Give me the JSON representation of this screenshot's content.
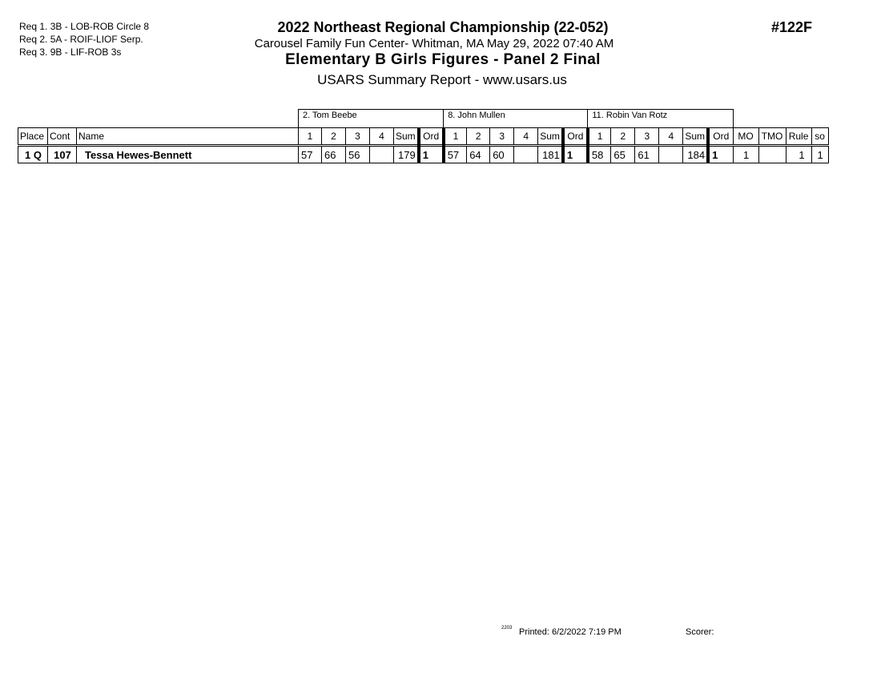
{
  "requirements": [
    "Req  1.  3B - LOB-ROB Circle 8",
    "Req  2.  5A - ROIF-LIOF Serp.",
    "Req  3.  9B - LIF-ROB 3s"
  ],
  "header": {
    "title": "2022 Northeast Regional Championship (22-052)",
    "location": "Carousel Family Fun Center- Whitman, MA  May 29, 2022  07:40 AM",
    "event": "Elementary B Girls Figures - Panel 2 Final",
    "report": "USARS Summary Report - www.usars.us",
    "event_number": "#122F"
  },
  "judges": [
    "2.  Tom Beebe",
    "8.  John Mullen",
    "11.  Robin Van Rotz"
  ],
  "columns": {
    "place": "Place",
    "cont": "Cont",
    "name": "Name",
    "scores": [
      "1",
      "2",
      "3",
      "4",
      "Sum",
      "Ord"
    ],
    "mo": "MO",
    "tmo": "TMO",
    "rule": "Rule",
    "so": "so"
  },
  "rows": [
    {
      "place": "1 Q",
      "cont": "107",
      "name": "Tessa Hewes-Bennett",
      "judges": [
        [
          "57",
          "66",
          "56",
          "",
          "179",
          "1"
        ],
        [
          "57",
          "64",
          "60",
          "",
          "181",
          "1"
        ],
        [
          "58",
          "65",
          "61",
          "",
          "184",
          "1"
        ]
      ],
      "mo": "1",
      "tmo": "",
      "rule": "1",
      "so": "1"
    }
  ],
  "footer": {
    "code": "2203",
    "printed": "Printed:  6/2/2022  7:19 PM",
    "scorer": "Scorer:"
  }
}
